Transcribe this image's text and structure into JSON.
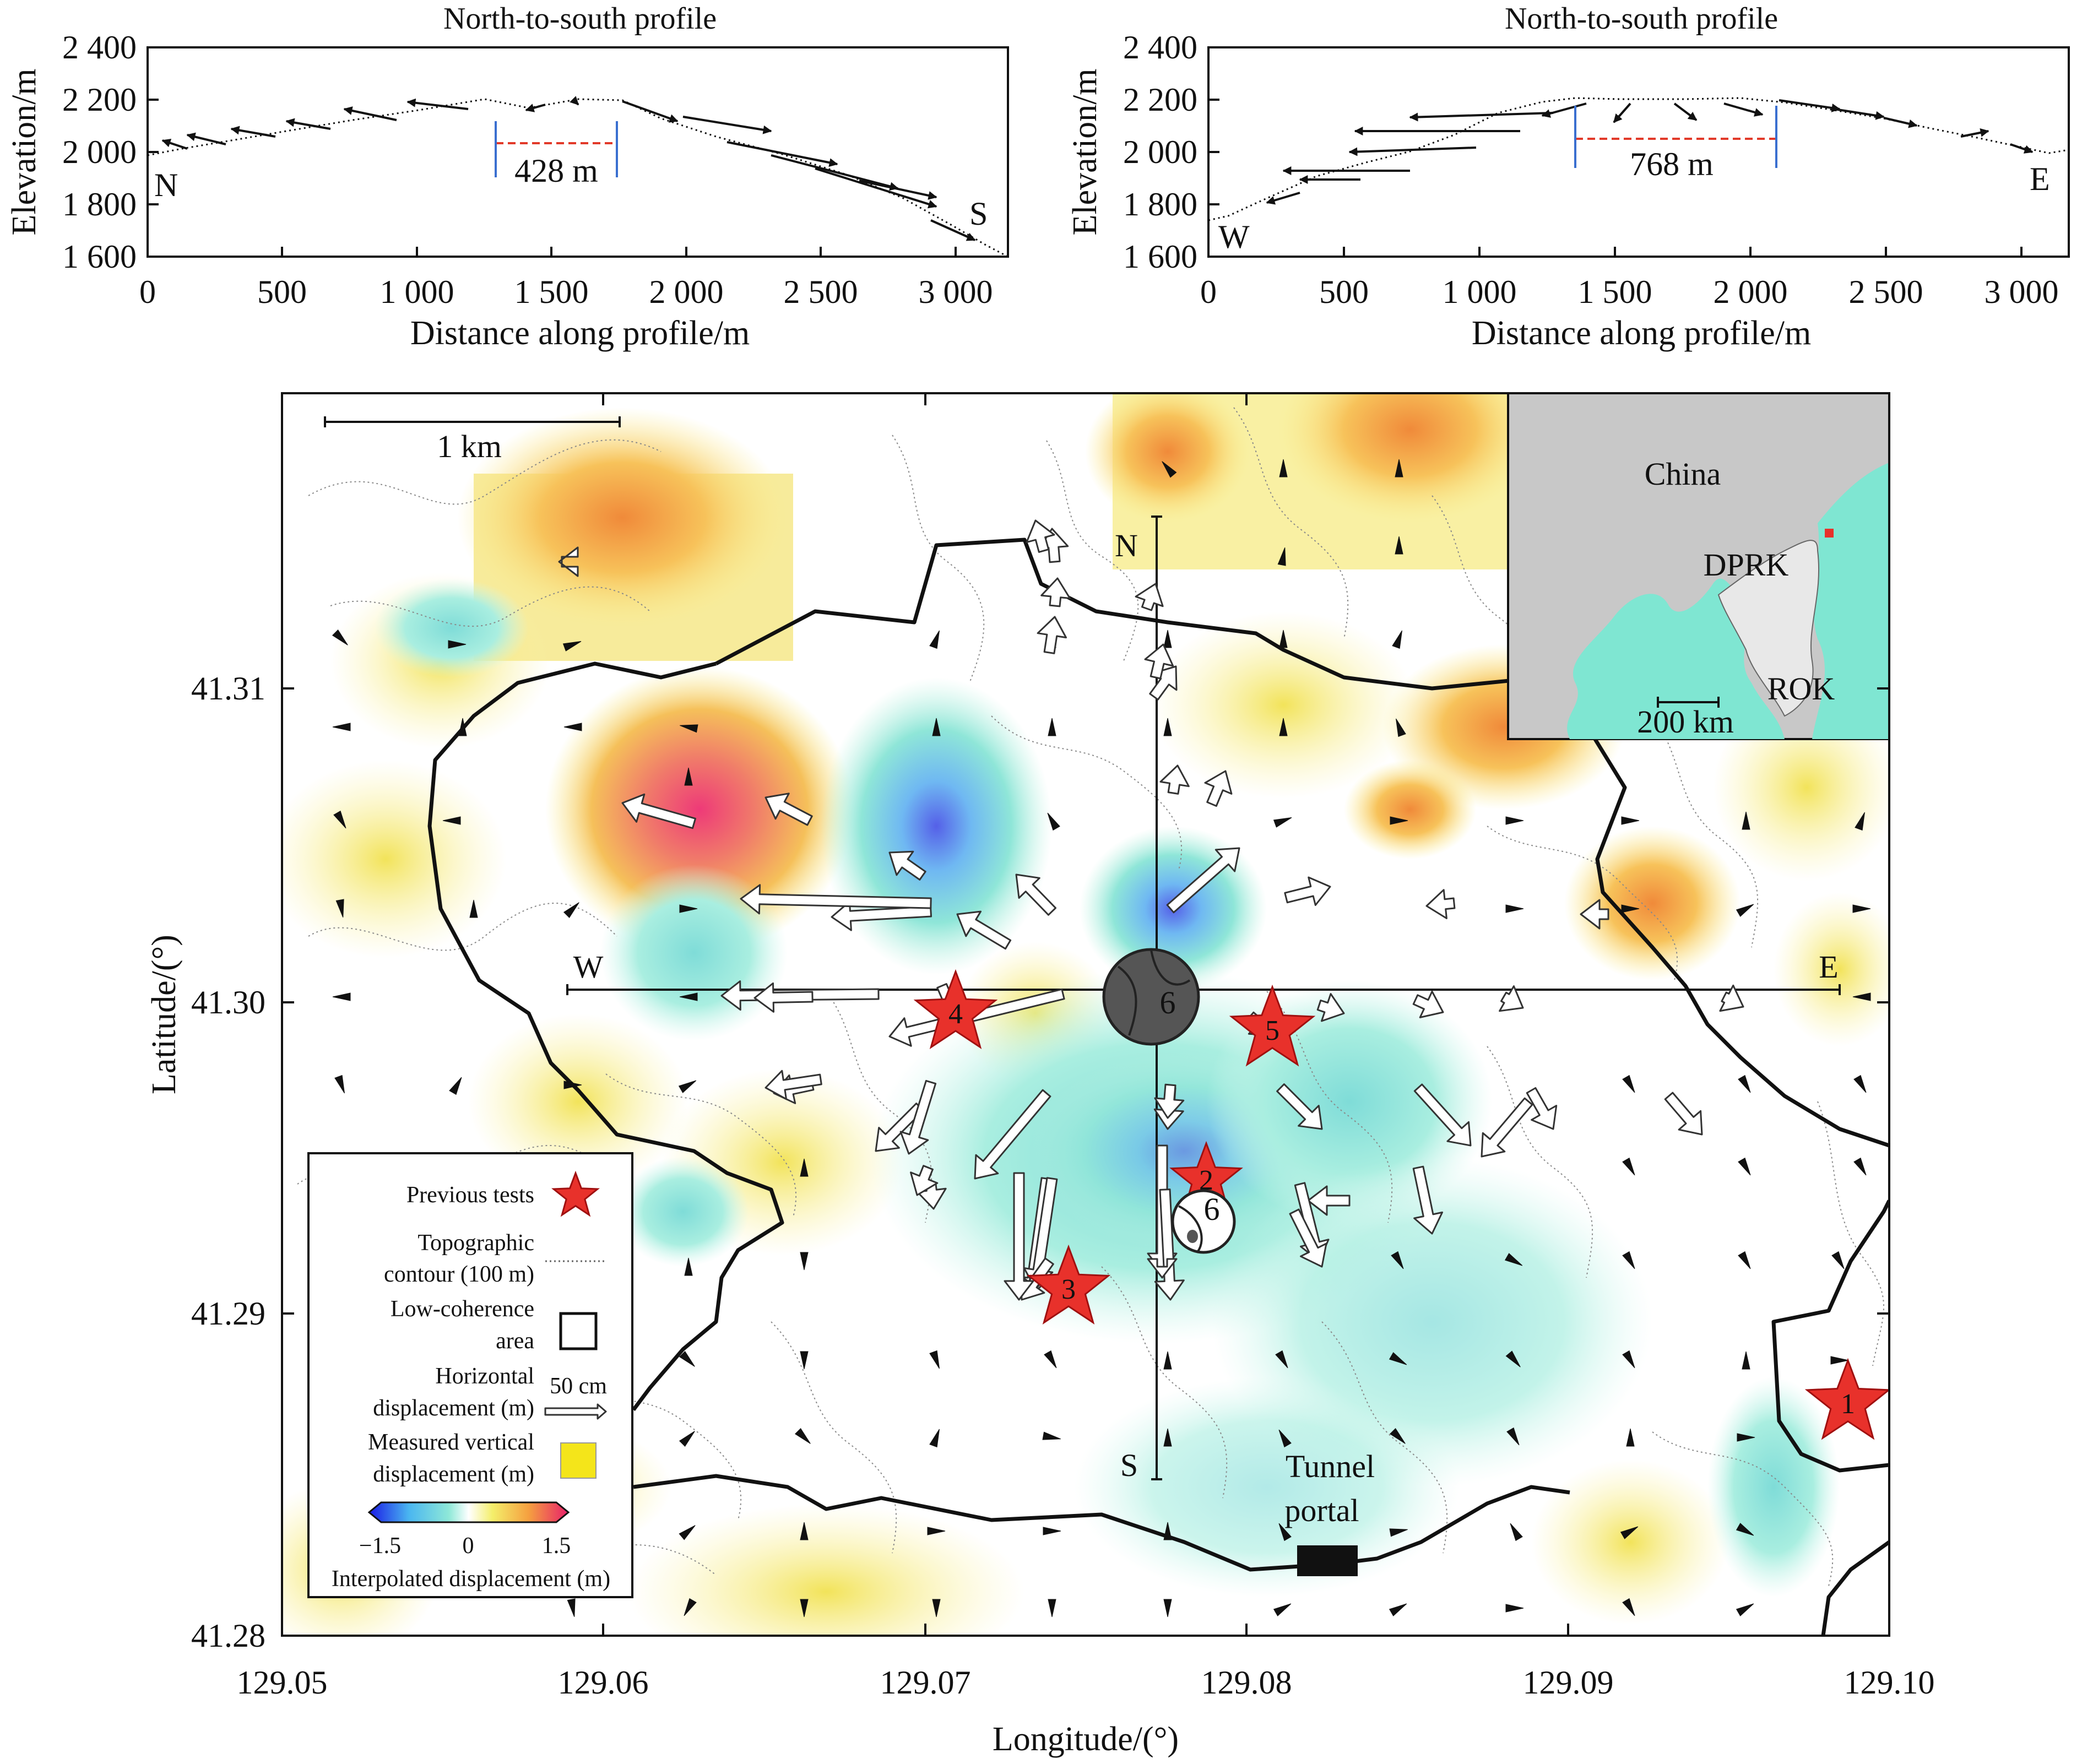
{
  "profile_left": {
    "title": "North-to-south profile",
    "ylabel": "Elevation/m",
    "xlabel": "Distance along profile/m",
    "y_ticks": [
      "2 400",
      "2 200",
      "2 000",
      "1 800",
      "1 600"
    ],
    "x_ticks": [
      "0",
      "500",
      "1 000",
      "1 500",
      "2 000",
      "2 500",
      "3 000"
    ],
    "start_label": "N",
    "end_label": "S",
    "width_label": "428 m"
  },
  "profile_right": {
    "title": "North-to-south profile",
    "ylabel": "Elevation/m",
    "xlabel": "Distance along profile/m",
    "y_ticks": [
      "2 400",
      "2 200",
      "2 000",
      "1 800",
      "1 600"
    ],
    "x_ticks": [
      "0",
      "500",
      "1 000",
      "1 500",
      "2 000",
      "2 500",
      "3 000"
    ],
    "start_label": "W",
    "end_label": "E",
    "width_label": "768 m"
  },
  "map": {
    "scale_label": "1 km",
    "lat_ticks": [
      "41.31",
      "41.30",
      "41.29",
      "41.28"
    ],
    "lon_ticks": [
      "129.05",
      "129.06",
      "129.07",
      "129.08",
      "129.09",
      "129.10"
    ],
    "xlabel": "Longitude/(°)",
    "ylabel": "Latitude/(°)",
    "axis_n": "N",
    "axis_s": "S",
    "axis_w": "W",
    "axis_e": "E",
    "event6_label": "6",
    "event6_mech_label": "6",
    "tests": [
      "1",
      "2",
      "3",
      "4",
      "5"
    ],
    "tunnel_label_1": "Tunnel",
    "tunnel_label_2": "portal"
  },
  "inset": {
    "china": "China",
    "dprk": "DPRK",
    "rok": "ROK",
    "scale": "200 km"
  },
  "legend": {
    "previous_tests": "Previous tests",
    "topo_1": "Topographic",
    "topo_2": "contour (100 m)",
    "lowcoh_1": "Low-coherence",
    "lowcoh_2": "area",
    "horiz_1": "Horizontal",
    "horiz_2": "displacement (m)",
    "arrow_scale": "50 cm",
    "vert_1": "Measured vertical",
    "vert_2": "displacement (m)",
    "cb_min": "−1.5",
    "cb_mid": "0",
    "cb_max": "1.5",
    "cb_title": "Interpolated displacement (m)"
  },
  "colors": {
    "test_star": "#e8312b",
    "sea": "#7fe6d2",
    "land": "#c8c8c8",
    "event_ball": "#555555",
    "profile_span": "#e23a2a",
    "span_bars": "#3a6fd0",
    "vertical_swatch": "#f4e51a"
  }
}
